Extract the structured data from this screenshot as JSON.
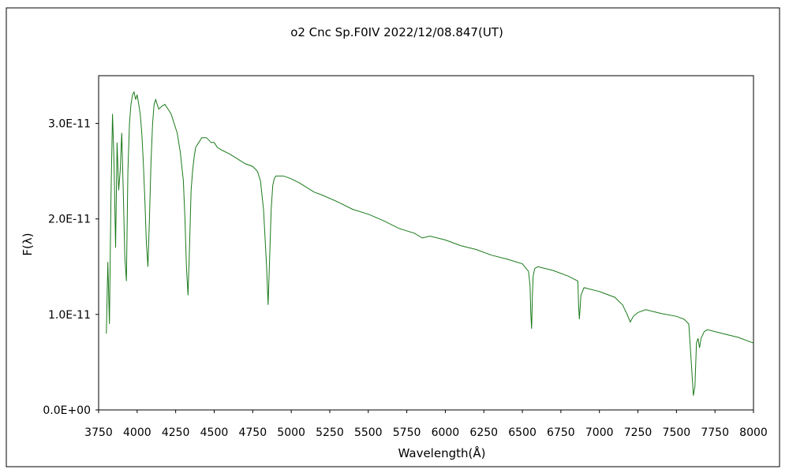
{
  "chart_data": {
    "type": "line",
    "title": "ο2 Cnc   Sp.F0IV   2022/12/08.847(UT)",
    "xlabel": "Wavelength(Å)",
    "ylabel": "F(λ)",
    "xlim": [
      3750,
      8000
    ],
    "ylim": [
      0,
      3.5e-11
    ],
    "x_ticks": [
      3750,
      4000,
      4250,
      4500,
      4750,
      5000,
      5250,
      5500,
      5750,
      6000,
      6250,
      6500,
      6750,
      7000,
      7250,
      7500,
      7750,
      8000
    ],
    "x_tick_labels": [
      "3750",
      "4000",
      "4250",
      "4500",
      "4750",
      "5000",
      "5250",
      "5500",
      "5750",
      "6000",
      "6250",
      "6500",
      "6750",
      "7000",
      "7250",
      "7500",
      "7750",
      "8000"
    ],
    "y_ticks": [
      0,
      1e-11,
      2e-11,
      3e-11
    ],
    "y_tick_labels": [
      "0.0E+00",
      "1.0E-11",
      "2.0E-11",
      "3.0E-11"
    ],
    "grid": false,
    "colors": {
      "series": "#1a7a1a",
      "frame": "#000000",
      "background": "#ffffff"
    },
    "series": [
      {
        "x": [
          3800,
          3810,
          3820,
          3830,
          3840,
          3850,
          3860,
          3870,
          3880,
          3890,
          3900,
          3910,
          3920,
          3930,
          3940,
          3950,
          3960,
          3970,
          3980,
          3990,
          4000,
          4010,
          4020,
          4030,
          4040,
          4050,
          4060,
          4070,
          4080,
          4090,
          4100,
          4110,
          4120,
          4130,
          4140,
          4160,
          4180,
          4200,
          4220,
          4240,
          4260,
          4280,
          4300,
          4310,
          4320,
          4330,
          4340,
          4350,
          4360,
          4370,
          4380,
          4400,
          4420,
          4450,
          4480,
          4500,
          4520,
          4550,
          4600,
          4650,
          4700,
          4750,
          4780,
          4800,
          4820,
          4840,
          4850,
          4860,
          4870,
          4880,
          4890,
          4900,
          4950,
          5000,
          5050,
          5100,
          5150,
          5200,
          5300,
          5400,
          5500,
          5600,
          5700,
          5800,
          5850,
          5900,
          6000,
          6100,
          6200,
          6300,
          6400,
          6500,
          6540,
          6550,
          6555,
          6560,
          6565,
          6570,
          6580,
          6600,
          6700,
          6800,
          6860,
          6865,
          6870,
          6880,
          6900,
          7000,
          7100,
          7150,
          7180,
          7200,
          7220,
          7250,
          7300,
          7400,
          7500,
          7550,
          7580,
          7600,
          7610,
          7620,
          7630,
          7640,
          7650,
          7660,
          7680,
          7700,
          7800,
          7900,
          8000
        ],
        "values": [
          8e-12,
          1.55e-11,
          9e-12,
          2.2e-11,
          3.1e-11,
          2.6e-11,
          1.7e-11,
          2.8e-11,
          2.3e-11,
          2.5e-11,
          2.9e-11,
          2.3e-11,
          1.6e-11,
          1.35e-11,
          2.5e-11,
          3e-11,
          3.2e-11,
          3.3e-11,
          3.33e-11,
          3.25e-11,
          3.3e-11,
          3.2e-11,
          3.1e-11,
          2.9e-11,
          2.6e-11,
          2.2e-11,
          1.75e-11,
          1.5e-11,
          2e-11,
          2.6e-11,
          3e-11,
          3.2e-11,
          3.25e-11,
          3.2e-11,
          3.15e-11,
          3.18e-11,
          3.2e-11,
          3.15e-11,
          3.1e-11,
          3e-11,
          2.9e-11,
          2.7e-11,
          2.4e-11,
          2e-11,
          1.5e-11,
          1.2e-11,
          1.7e-11,
          2.3e-11,
          2.5e-11,
          2.65e-11,
          2.75e-11,
          2.8e-11,
          2.85e-11,
          2.85e-11,
          2.8e-11,
          2.8e-11,
          2.75e-11,
          2.72e-11,
          2.68e-11,
          2.63e-11,
          2.58e-11,
          2.55e-11,
          2.5e-11,
          2.4e-11,
          2.1e-11,
          1.5e-11,
          1.1e-11,
          1.6e-11,
          2.1e-11,
          2.35e-11,
          2.42e-11,
          2.45e-11,
          2.45e-11,
          2.42e-11,
          2.38e-11,
          2.33e-11,
          2.28e-11,
          2.25e-11,
          2.18e-11,
          2.1e-11,
          2.05e-11,
          1.98e-11,
          1.9e-11,
          1.85e-11,
          1.8e-11,
          1.82e-11,
          1.78e-11,
          1.72e-11,
          1.68e-11,
          1.62e-11,
          1.58e-11,
          1.53e-11,
          1.45e-11,
          1.3e-11,
          1e-11,
          8.5e-12,
          1.2e-11,
          1.4e-11,
          1.48e-11,
          1.5e-11,
          1.46e-11,
          1.4e-11,
          1.35e-11,
          1.1e-11,
          9.5e-12,
          1.2e-11,
          1.28e-11,
          1.24e-11,
          1.18e-11,
          1.1e-11,
          1e-11,
          9.2e-12,
          9.8e-12,
          1.02e-11,
          1.05e-11,
          1.01e-11,
          9.8e-12,
          9.5e-12,
          9e-12,
          4e-12,
          1.5e-12,
          2.5e-12,
          7e-12,
          7.5e-12,
          6.5e-12,
          7.5e-12,
          8.2e-12,
          8.4e-12,
          8e-12,
          7.6e-12,
          7e-12
        ]
      }
    ]
  }
}
